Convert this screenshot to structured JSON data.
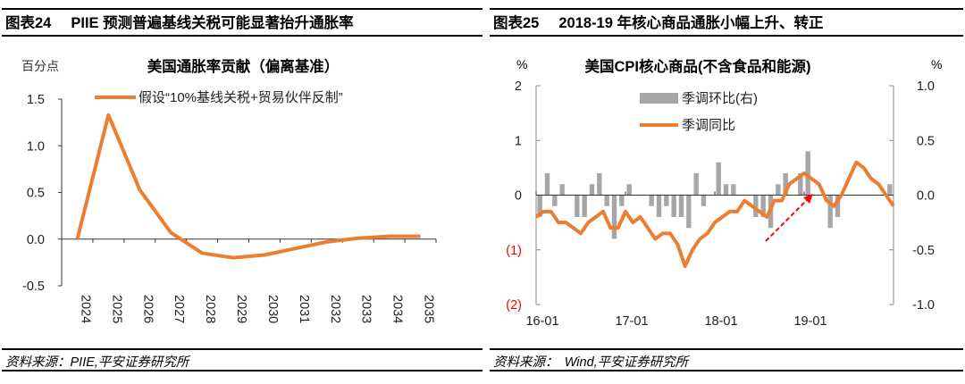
{
  "left": {
    "figure_no": "图表24",
    "figure_title": "PIIE 预测普遍基线关税可能显著抬升通胀率",
    "source": "资料来源：PIIE,平安证券研究所"
  },
  "right": {
    "figure_no": "图表25",
    "figure_title": "2018-19 年核心商品通胀小幅上升、转正",
    "source": "资料来源：　Wind,平安证券研究所"
  },
  "chart_data": [
    {
      "type": "line",
      "title": "美国通胀率贡献（偏离基准）",
      "ylabel": "百分点",
      "categories": [
        "2024",
        "2025",
        "2026",
        "2027",
        "2028",
        "2029",
        "2030",
        "2031",
        "2032",
        "2033",
        "2034",
        "2035"
      ],
      "series": [
        {
          "name": "假设“10%基线关税+贸易伙伴反制”",
          "color": "#ED7D31",
          "values": [
            0,
            1.33,
            0.53,
            0.07,
            -0.15,
            -0.2,
            -0.17,
            -0.1,
            -0.03,
            0.01,
            0.03,
            0.03
          ]
        }
      ],
      "ylim": [
        -0.5,
        1.5
      ],
      "yticks": [
        "1.5",
        "1.0",
        "0.5",
        "0.0",
        "-0.5"
      ],
      "legend": "top",
      "grid": false
    },
    {
      "type": "bar+line",
      "title": "美国CPI核心商品(不含食品和能源)",
      "ylabel_left": "%",
      "ylabel_right": "%",
      "x_start": "16-01",
      "x_end": "19-12",
      "xticks": [
        "16-01",
        "17-01",
        "18-01",
        "19-01"
      ],
      "yticks_left": [
        "2",
        "1",
        "0",
        "(1)",
        "(2)"
      ],
      "yticks_right": [
        "1.0",
        "0.5",
        "0.0",
        "-0.5",
        "-1.0"
      ],
      "ylim_left": [
        -2,
        2
      ],
      "ylim_right": [
        -1,
        1
      ],
      "negative_tick_color": "#FF0000",
      "legend": "top",
      "grid": false,
      "series": [
        {
          "name": "季调环比(右)",
          "type": "bar",
          "axis": "right",
          "color": "#A6A6A6",
          "values": [
            -0.2,
            0.2,
            -0.1,
            0.1,
            0,
            -0.2,
            -0.2,
            0.1,
            0.2,
            -0.1,
            -0.4,
            -0.1,
            0.1,
            0,
            0,
            -0.1,
            -0.2,
            -0.1,
            -0.2,
            -0.2,
            -0.3,
            0.2,
            -0.1,
            0,
            0.3,
            0.1,
            0.1,
            0,
            0,
            -0.2,
            -0.2,
            -0.3,
            0.1,
            0.2,
            0,
            0.2,
            0.4,
            0,
            0,
            -0.3,
            -0.2,
            0,
            0,
            0,
            0,
            0,
            0,
            0.1
          ]
        },
        {
          "name": "季调同比",
          "type": "line",
          "axis": "left",
          "color": "#ED7D31",
          "values": [
            -0.4,
            -0.3,
            -0.3,
            -0.5,
            -0.5,
            -0.6,
            -0.7,
            -0.5,
            -0.4,
            -0.3,
            -0.6,
            -0.6,
            -0.3,
            -0.5,
            -0.4,
            -0.6,
            -0.8,
            -0.7,
            -0.7,
            -0.9,
            -1.3,
            -1.0,
            -0.8,
            -0.7,
            -0.5,
            -0.4,
            -0.3,
            -0.3,
            -0.1,
            -0.2,
            -0.3,
            -0.4,
            -0.1,
            -0.1,
            0.2,
            0.3,
            0.4,
            0.3,
            0.2,
            -0.1,
            -0.2,
            0.0,
            0.3,
            0.6,
            0.5,
            0.3,
            0.2,
            -0.2
          ]
        }
      ],
      "annotation": {
        "type": "arrow",
        "color": "#FF0000"
      }
    }
  ]
}
